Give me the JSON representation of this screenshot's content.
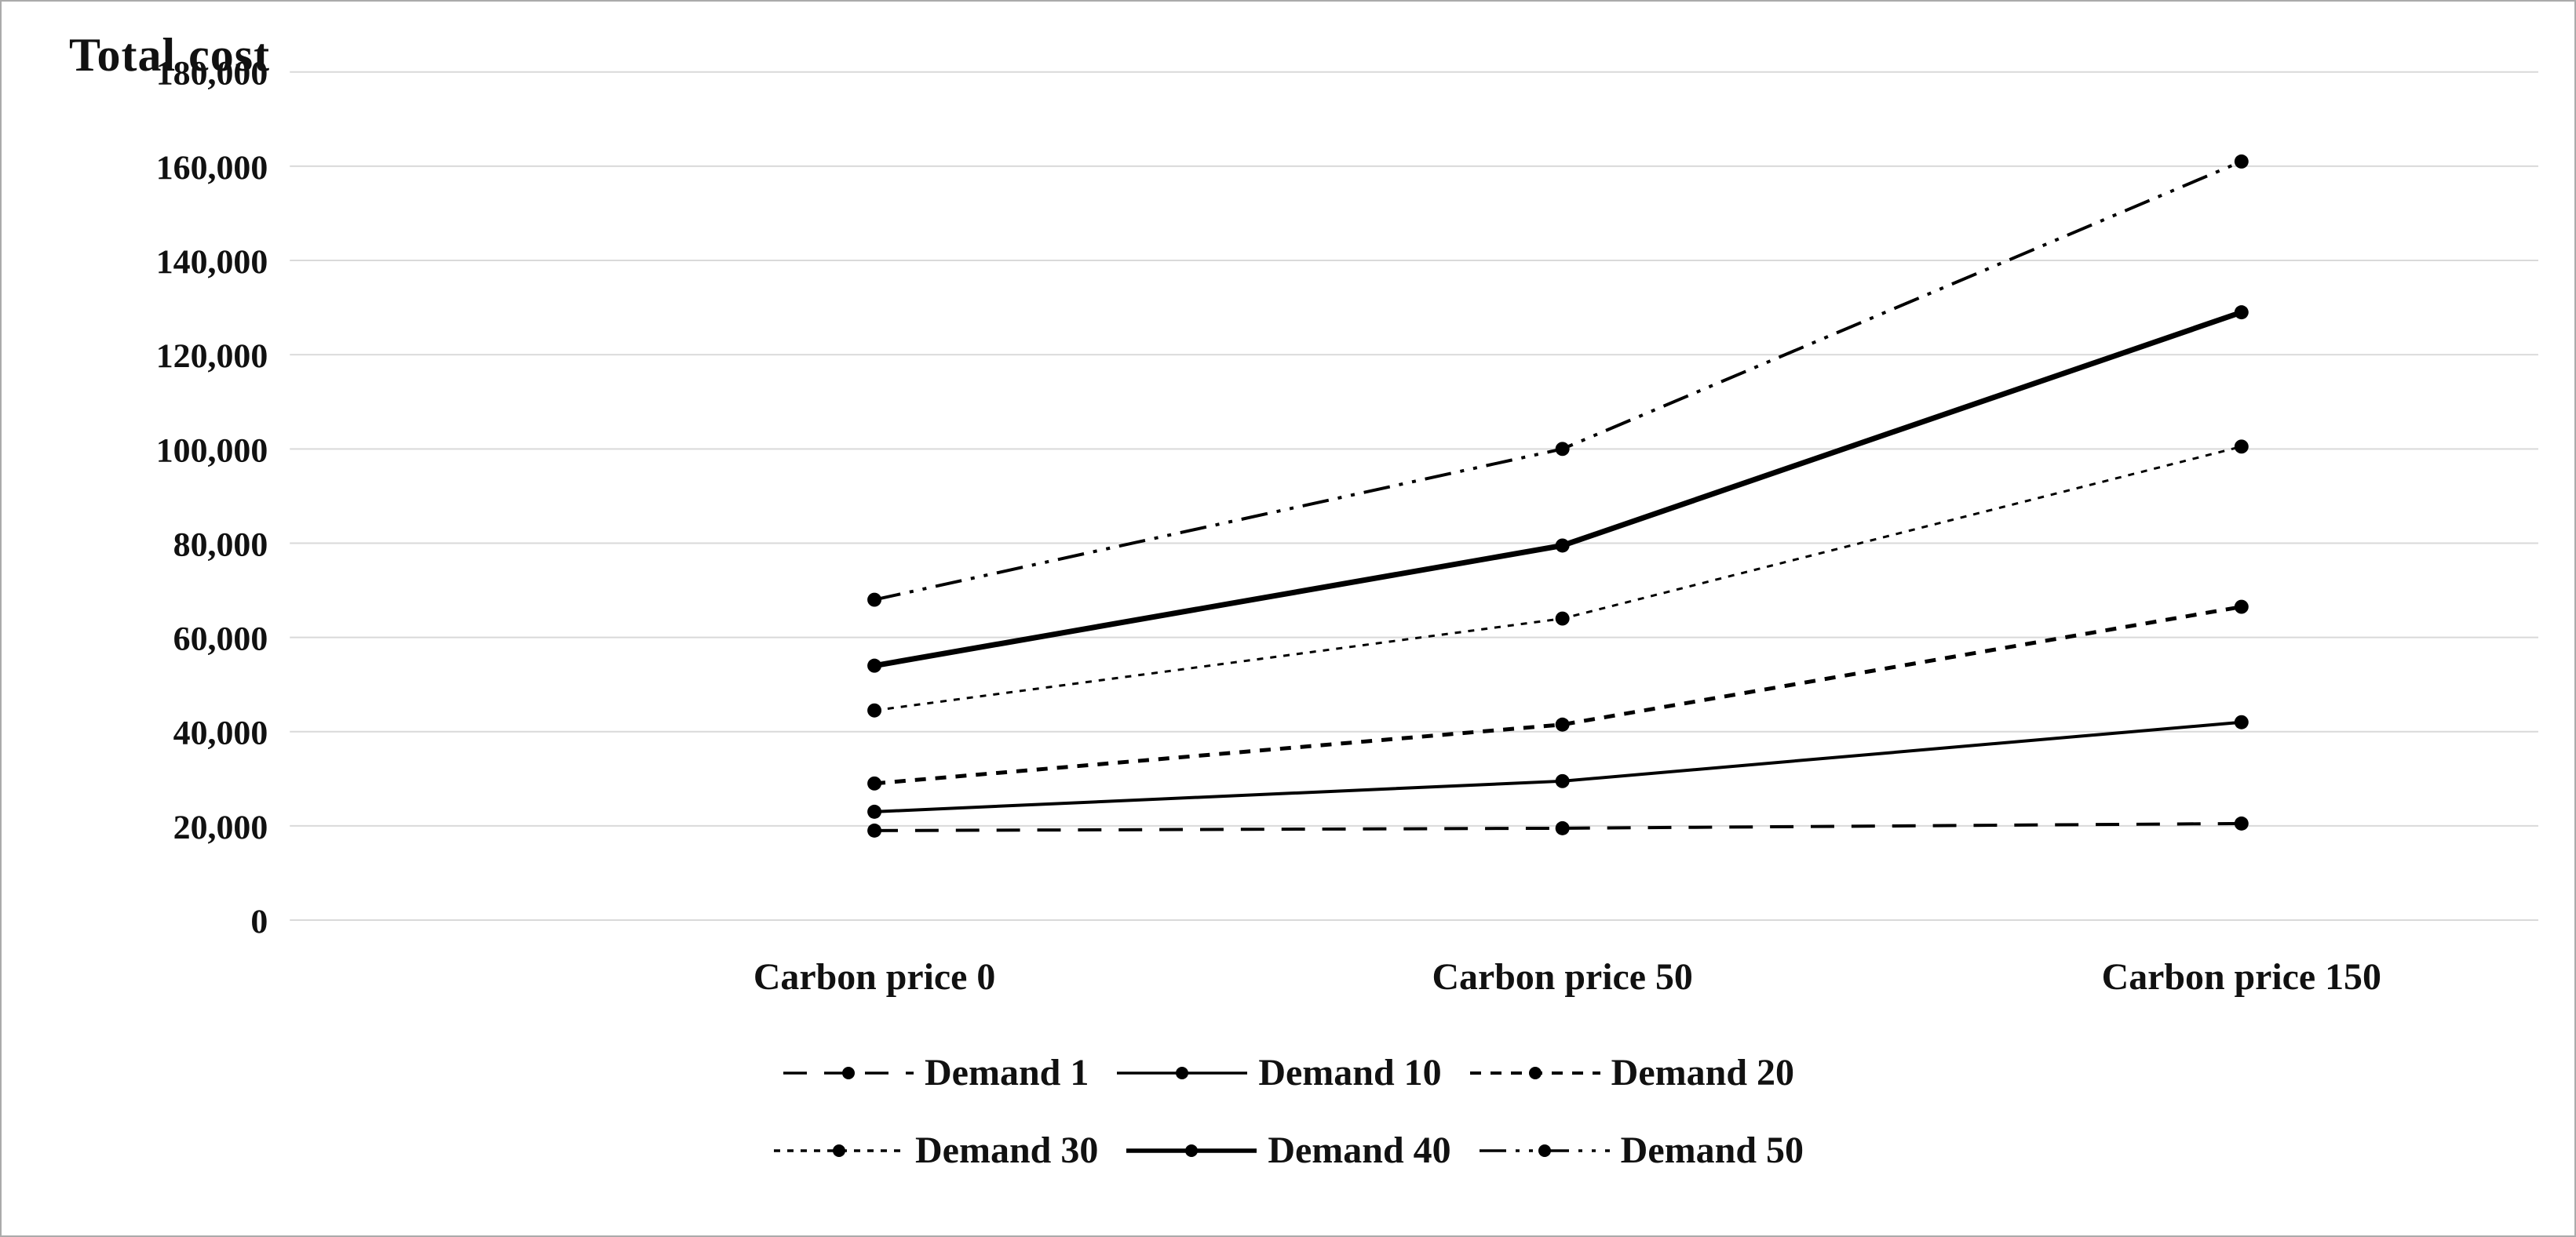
{
  "chart_data": {
    "type": "line",
    "title": "Total cost",
    "xlabel": "",
    "ylabel": "Total cost",
    "categories": [
      "Carbon price 0",
      "Carbon price 50",
      "Carbon price 150"
    ],
    "series": [
      {
        "name": "Demand 1",
        "values": [
          19000,
          19500,
          20500
        ],
        "style": "long-dash",
        "width": 4
      },
      {
        "name": "Demand 10",
        "values": [
          23000,
          29500,
          42000
        ],
        "style": "solid",
        "width": 4
      },
      {
        "name": "Demand 20",
        "values": [
          29000,
          41500,
          66500
        ],
        "style": "dash",
        "width": 5
      },
      {
        "name": "Demand 30",
        "values": [
          44500,
          64000,
          100500
        ],
        "style": "fine-dash",
        "width": 3
      },
      {
        "name": "Demand 40",
        "values": [
          54000,
          79500,
          129000
        ],
        "style": "solid",
        "width": 7
      },
      {
        "name": "Demand 50",
        "values": [
          68000,
          100000,
          161000
        ],
        "style": "dash-dot-dot",
        "width": 4
      }
    ],
    "ylim": [
      0,
      180000
    ],
    "ytick_step": 20000,
    "ytick_labels": [
      "0",
      "20,000",
      "40,000",
      "60,000",
      "80,000",
      "100,000",
      "120,000",
      "140,000",
      "160,000",
      "180,000"
    ],
    "grid": true,
    "legend_position": "bottom",
    "legend_rows": [
      [
        "Demand 1",
        "Demand 10",
        "Demand 20"
      ],
      [
        "Demand 30",
        "Demand 40",
        "Demand 50"
      ]
    ],
    "colors": {
      "line": "#000000",
      "text": "#111111",
      "grid": "#d9d9d9",
      "background": "#ffffff",
      "border": "#ababab"
    }
  }
}
